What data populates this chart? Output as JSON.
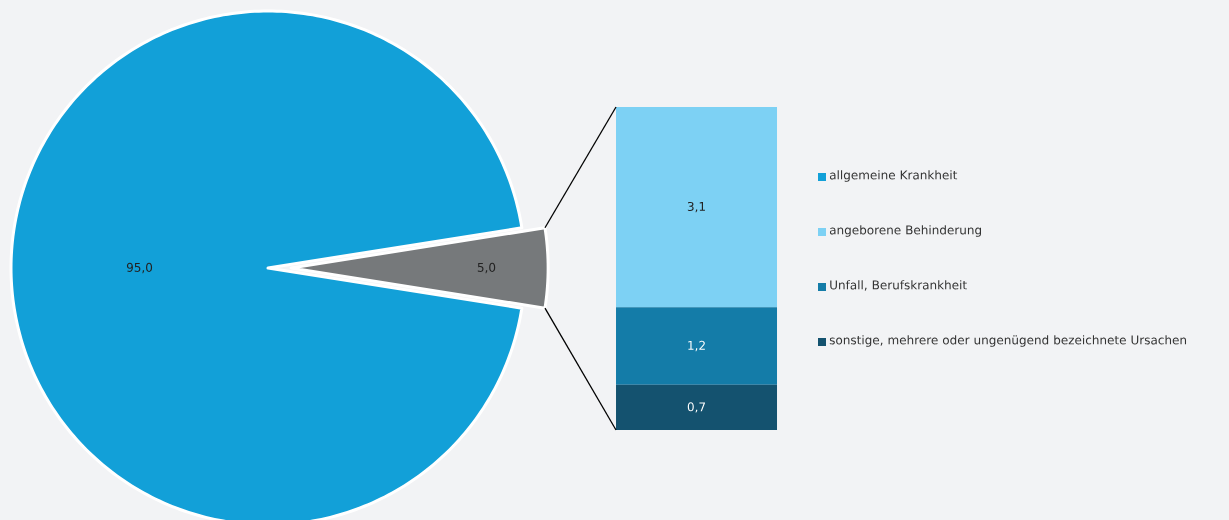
{
  "chart_data": [
    {
      "type": "pie",
      "categories": [
        "allgemeine Krankheit",
        null
      ],
      "values": [
        95.0,
        5.0
      ],
      "colors": [
        "#12a0d8",
        "#76797b"
      ],
      "value_labels": [
        "95,0",
        "5,0"
      ],
      "legend": "right"
    },
    {
      "type": "bar",
      "stacked": true,
      "categories": [
        null
      ],
      "legend": "right",
      "series": [
        {
          "name": "sonstige, mehrere oder ungenügend bezeichnete Ursachen",
          "color": "#14526f",
          "values": [
            0.7
          ],
          "value_labels": [
            "0,7"
          ]
        },
        {
          "name": "Unfall, Berufskrankheit",
          "color": "#147ca8",
          "values": [
            1.2
          ],
          "value_labels": [
            "1,2"
          ]
        },
        {
          "name": "angeborene Behinderung",
          "color": "#7dd1f4",
          "values": [
            3.1
          ],
          "value_labels": [
            "3,1"
          ]
        }
      ]
    }
  ]
}
